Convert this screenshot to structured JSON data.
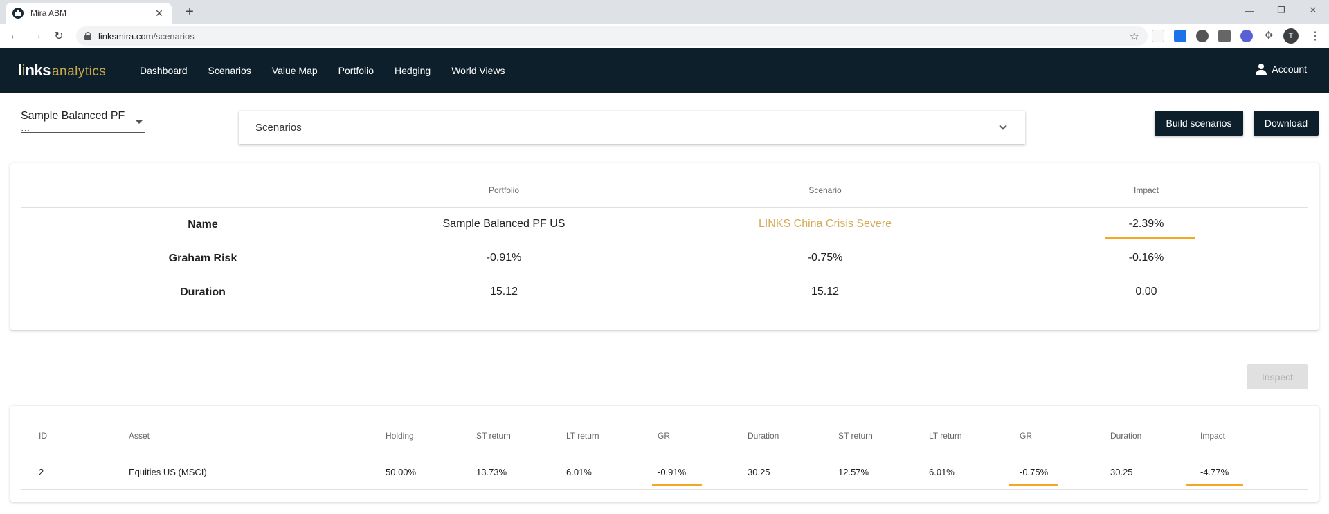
{
  "browser": {
    "tab_title": "Mira ABM",
    "url_host": "linksmira.com",
    "url_path": "/scenarios",
    "profile_initial": "T"
  },
  "app": {
    "logo": {
      "l": "l",
      "i": "i",
      "nks": "nks",
      "analytics": "analytics"
    },
    "nav": [
      "Dashboard",
      "Scenarios",
      "Value Map",
      "Portfolio",
      "Hedging",
      "World Views"
    ],
    "account_label": "Account"
  },
  "controls": {
    "portfolio_value": "Sample Balanced PF ...",
    "scenario_value": "Scenarios",
    "build_label": "Build scenarios",
    "download_label": "Download",
    "inspect_label": "Inspect"
  },
  "summary": {
    "headers": {
      "portfolio": "Portfolio",
      "scenario": "Scenario",
      "impact": "Impact"
    },
    "rows": [
      {
        "label": "Name",
        "portfolio": "Sample Balanced PF US",
        "scenario": "LINKS China Crisis Severe",
        "impact": "-2.39%"
      },
      {
        "label": "Graham Risk",
        "portfolio": "-0.91%",
        "scenario": "-0.75%",
        "impact": "-0.16%"
      },
      {
        "label": "Duration",
        "portfolio": "15.12",
        "scenario": "15.12",
        "impact": "0.00"
      }
    ]
  },
  "detail": {
    "headers": [
      "ID",
      "Asset",
      "Holding",
      "ST return",
      "LT return",
      "GR",
      "Duration",
      "ST return",
      "LT return",
      "GR",
      "Duration",
      "Impact"
    ],
    "rows": [
      [
        "2",
        "Equities US (MSCI)",
        "50.00%",
        "13.73%",
        "6.01%",
        "-0.91%",
        "30.25",
        "12.57%",
        "6.01%",
        "-0.75%",
        "30.25",
        "-4.77%"
      ]
    ]
  },
  "colors": {
    "nav_bg": "#0c1f2b",
    "gold": "#d4aa55",
    "underline": "#f5a623"
  }
}
